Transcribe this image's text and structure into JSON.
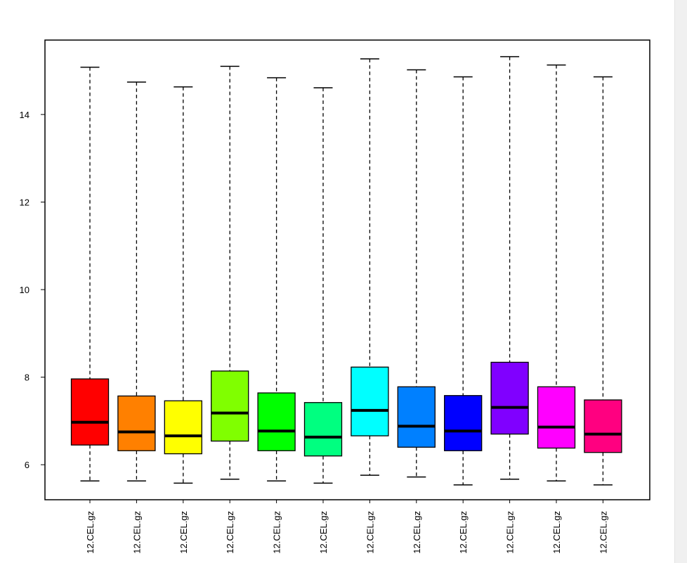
{
  "chart_data": {
    "type": "boxplot",
    "title": "",
    "xlabel": "",
    "ylabel": "",
    "ylim": [
      5.2,
      15.7
    ],
    "yticks": [
      6,
      8,
      10,
      12,
      14
    ],
    "ytick_labels": [
      "6",
      "8",
      "10",
      "12",
      "14"
    ],
    "grid": false,
    "legend": "none",
    "whisker_style": "dashed",
    "categories": [
      "12.CEL.gz",
      "12.CEL.gz",
      "12.CEL.gz",
      "12.CEL.gz",
      "12.CEL.gz",
      "12.CEL.gz",
      "12.CEL.gz",
      "12.CEL.gz",
      "12.CEL.gz",
      "12.CEL.gz",
      "12.CEL.gz",
      "12.CEL.gz"
    ],
    "boxes": [
      {
        "min": 5.63,
        "q1": 6.45,
        "median": 6.97,
        "q3": 7.96,
        "max": 15.08,
        "color": "#ff0000"
      },
      {
        "min": 5.63,
        "q1": 6.32,
        "median": 6.75,
        "q3": 7.57,
        "max": 14.74,
        "color": "#ff8000"
      },
      {
        "min": 5.58,
        "q1": 6.25,
        "median": 6.66,
        "q3": 7.46,
        "max": 14.63,
        "color": "#ffff00"
      },
      {
        "min": 5.67,
        "q1": 6.54,
        "median": 7.18,
        "q3": 8.14,
        "max": 15.1,
        "color": "#80ff00"
      },
      {
        "min": 5.63,
        "q1": 6.32,
        "median": 6.77,
        "q3": 7.64,
        "max": 14.84,
        "color": "#00ff00"
      },
      {
        "min": 5.58,
        "q1": 6.2,
        "median": 6.63,
        "q3": 7.42,
        "max": 14.61,
        "color": "#00ff80"
      },
      {
        "min": 5.76,
        "q1": 6.66,
        "median": 7.24,
        "q3": 8.23,
        "max": 15.27,
        "color": "#00ffff"
      },
      {
        "min": 5.72,
        "q1": 6.4,
        "median": 6.88,
        "q3": 7.78,
        "max": 15.02,
        "color": "#0080ff"
      },
      {
        "min": 5.54,
        "q1": 6.32,
        "median": 6.77,
        "q3": 7.58,
        "max": 14.86,
        "color": "#0000ff"
      },
      {
        "min": 5.67,
        "q1": 6.7,
        "median": 7.31,
        "q3": 8.34,
        "max": 15.32,
        "color": "#8000ff"
      },
      {
        "min": 5.63,
        "q1": 6.38,
        "median": 6.86,
        "q3": 7.78,
        "max": 15.13,
        "color": "#ff00ff"
      },
      {
        "min": 5.54,
        "q1": 6.28,
        "median": 6.7,
        "q3": 7.48,
        "max": 14.86,
        "color": "#ff0080"
      }
    ]
  }
}
